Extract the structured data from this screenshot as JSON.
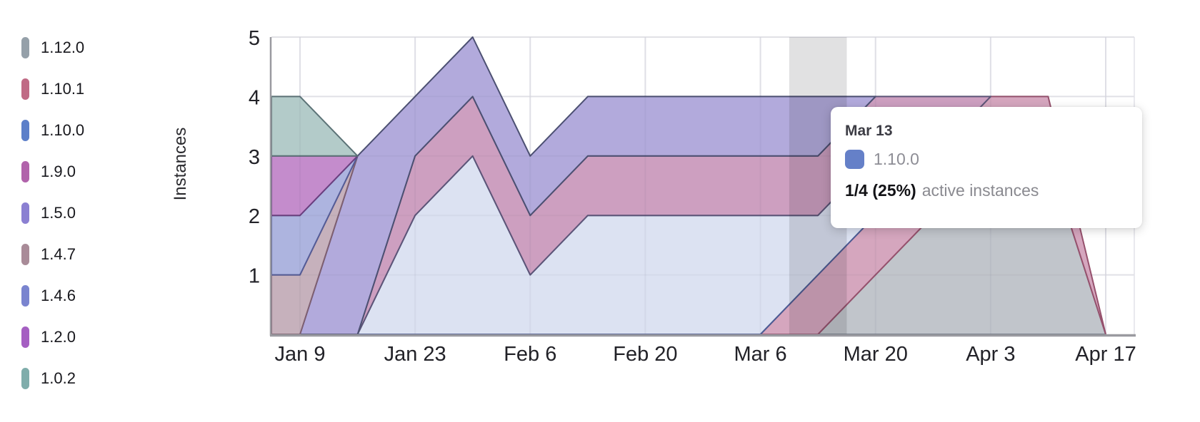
{
  "chart_data": {
    "type": "area",
    "stacked": true,
    "title": "",
    "xlabel": "",
    "ylabel": "Instances",
    "ylim": [
      0,
      5
    ],
    "y_ticks": [
      1,
      2,
      3,
      4,
      5
    ],
    "grid": true,
    "legend_position": "left",
    "dates": [
      "Jan 9",
      "Jan 16",
      "Jan 23",
      "Jan 30",
      "Feb 6",
      "Feb 13",
      "Feb 20",
      "Feb 27",
      "Mar 6",
      "Mar 13",
      "Mar 20",
      "Mar 27",
      "Apr 3",
      "Apr 10",
      "Apr 17"
    ],
    "x_tick_labels": [
      "Jan 9",
      "Jan 23",
      "Feb 6",
      "Feb 20",
      "Mar 6",
      "Mar 20",
      "Apr 3",
      "Apr 17"
    ],
    "highlight_date": "Mar 13",
    "series": [
      {
        "name": "1.12.0",
        "marker": "#95a0a9",
        "fill": "#c1c5cb",
        "stroke": "#6f7986",
        "values": [
          0,
          0,
          0,
          0,
          0,
          0,
          0,
          0,
          0,
          0,
          1,
          2,
          3,
          3,
          0
        ]
      },
      {
        "name": "1.10.1",
        "marker": "#c06a85",
        "fill": "#d5a6be",
        "stroke": "#96516d",
        "values": [
          0,
          0,
          0,
          0,
          0,
          0,
          0,
          0,
          0,
          1,
          1,
          1,
          1,
          1,
          0
        ]
      },
      {
        "name": "1.10.0",
        "marker": "#5c7fc9",
        "fill": "#dce2f2",
        "stroke": "#4b5b94",
        "values": [
          0,
          0,
          2,
          3,
          1,
          2,
          2,
          2,
          2,
          1,
          1,
          0,
          0,
          0,
          0
        ]
      },
      {
        "name": "1.9.0",
        "marker": "#b163ab",
        "fill": "#cd9fc0",
        "stroke": "#5d5578",
        "values": [
          0,
          0,
          1,
          1,
          1,
          1,
          1,
          1,
          1,
          1,
          1,
          1,
          0,
          0,
          0
        ]
      },
      {
        "name": "1.5.0",
        "marker": "#8b80d2",
        "fill": "#b2aadc",
        "stroke": "#4c5072",
        "values": [
          0,
          3,
          1,
          1,
          1,
          1,
          1,
          1,
          1,
          1,
          0,
          0,
          0,
          0,
          0
        ]
      },
      {
        "name": "1.4.7",
        "marker": "#a98b98",
        "fill": "#c6b1bc",
        "stroke": "#7e5f71",
        "values": [
          1,
          0,
          0,
          0,
          0,
          0,
          0,
          0,
          0,
          0,
          0,
          0,
          0,
          0,
          0
        ]
      },
      {
        "name": "1.4.6",
        "marker": "#7a84cf",
        "fill": "#adb4df",
        "stroke": "#545c97",
        "values": [
          1,
          0,
          0,
          0,
          0,
          0,
          0,
          0,
          0,
          0,
          0,
          0,
          0,
          0,
          0
        ]
      },
      {
        "name": "1.2.0",
        "marker": "#a55fc2",
        "fill": "#c48ccc",
        "stroke": "#6b3f7f",
        "values": [
          1,
          0,
          0,
          0,
          0,
          0,
          0,
          0,
          0,
          0,
          0,
          0,
          0,
          0,
          0
        ]
      },
      {
        "name": "1.0.2",
        "marker": "#7fadab",
        "fill": "#b3cbc9",
        "stroke": "#5c7377",
        "values": [
          1,
          0,
          0,
          0,
          0,
          0,
          0,
          0,
          0,
          0,
          0,
          0,
          0,
          0,
          0
        ]
      }
    ]
  },
  "tooltip": {
    "date": "Mar 13",
    "series": "1.10.0",
    "swatch_color": "#6580c8",
    "value": "1/4 (25%)",
    "label": "active instances"
  },
  "colors": {
    "axis_line": "#9a9aa0",
    "grid_line": "#e9e9ee",
    "tick_text": "#222228",
    "highlight_band": "rgba(25,25,30,0.13)"
  }
}
